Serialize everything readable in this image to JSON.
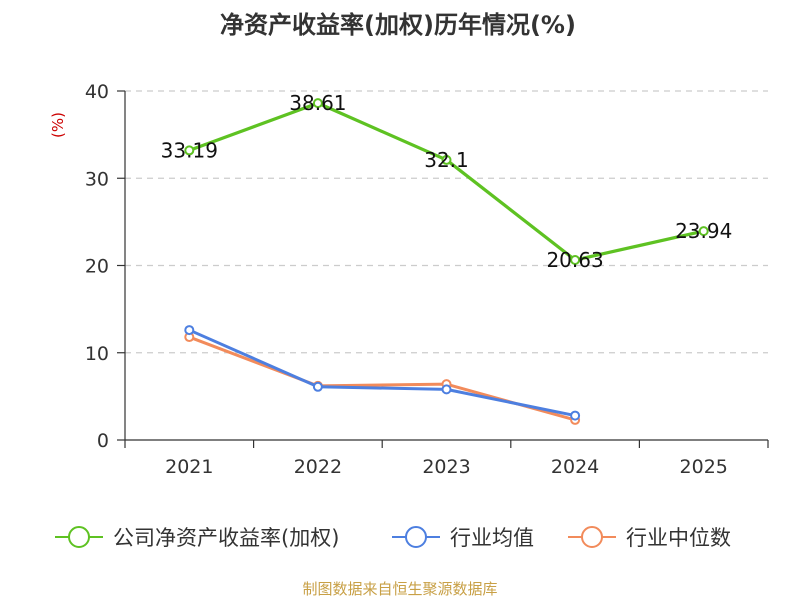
{
  "chart_data": {
    "type": "line",
    "title": "净资产收益率(加权)历年情况(%)",
    "ylabel": "(%)",
    "xlabel": "",
    "categories": [
      "2021",
      "2022",
      "2023",
      "2024",
      "2025"
    ],
    "ylim": [
      0,
      40
    ],
    "yticks": [
      0,
      10,
      20,
      30,
      40
    ],
    "grid": true,
    "legend_position": "bottom",
    "series": [
      {
        "name": "公司净资产收益率(加权)",
        "color": "#5ec222",
        "values": [
          33.19,
          38.61,
          32.1,
          20.63,
          23.94
        ],
        "labels": [
          "33.19",
          "38.61",
          "32.1",
          "20.63",
          "23.94"
        ]
      },
      {
        "name": "行业均值",
        "color": "#4d7fe0",
        "values": [
          12.6,
          6.1,
          5.8,
          2.8,
          null
        ]
      },
      {
        "name": "行业中位数",
        "color": "#f28b5b",
        "values": [
          11.8,
          6.2,
          6.4,
          2.3,
          null
        ]
      }
    ]
  },
  "source": {
    "text": "制图数据来自恒生聚源数据库",
    "color": "#c8a046"
  },
  "colors": {
    "axis": "#333333",
    "grid": "#cccccc",
    "unit": "#cc0000"
  }
}
